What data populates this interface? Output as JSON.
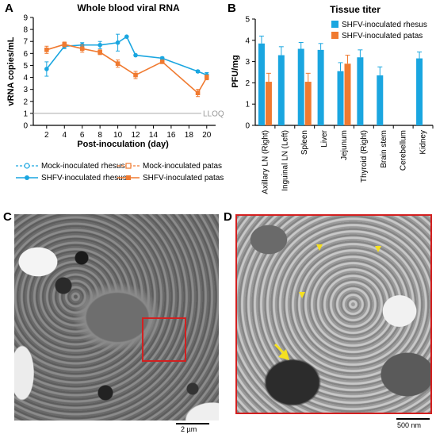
{
  "panel_labels": {
    "a": "A",
    "b": "B",
    "c": "C",
    "d": "D"
  },
  "chart_data": [
    {
      "type": "line",
      "title": "Whole blood viral RNA",
      "xlabel": "Post-inoculation (day)",
      "ylabel": "vRNA copies/mL",
      "xticks": [
        2,
        4,
        6,
        8,
        10,
        12,
        14,
        16,
        18,
        20
      ],
      "yticks": [
        0,
        1,
        2,
        3,
        4,
        5,
        6,
        7,
        8,
        9
      ],
      "ylim": [
        0,
        9
      ],
      "xlim": [
        0.5,
        21
      ],
      "lloq": 1,
      "lloq_label": "LLOQ",
      "legend": [
        "Mock-inoculated rhesus",
        "Mock-inoculated patas",
        "SHFV-inoculated rhesus",
        "SHFV-inoculated patas"
      ],
      "series": [
        {
          "name": "SHFV-inoculated rhesus",
          "color": "#1aa6e0",
          "x": [
            2,
            4,
            6,
            8,
            10,
            11,
            12,
            15,
            19,
            20
          ],
          "y": [
            4.7,
            6.6,
            6.7,
            6.7,
            6.9,
            7.4,
            5.85,
            5.6,
            4.5,
            4.2
          ],
          "err": [
            0.6,
            0.2,
            0.2,
            0.3,
            0.7,
            0,
            0,
            0.1,
            0.1,
            0.2
          ]
        },
        {
          "name": "SHFV-inoculated patas",
          "color": "#f07a30",
          "x": [
            2,
            4,
            6,
            8,
            10,
            12,
            15,
            19,
            20
          ],
          "y": [
            6.3,
            6.75,
            6.4,
            6.1,
            5.15,
            4.2,
            5.3,
            2.7,
            4.0
          ],
          "err": [
            0.3,
            0.2,
            0.3,
            0.2,
            0.3,
            0.3,
            0.1,
            0.3,
            0.2
          ]
        }
      ]
    },
    {
      "type": "bar",
      "title": "Tissue titer",
      "ylabel": "PFU/mg",
      "ylim": [
        0,
        5
      ],
      "yticks": [
        0,
        1,
        2,
        3,
        4,
        5
      ],
      "categories": [
        "Axillary LN (Right)",
        "Inguinal LN (Left)",
        "Spleen",
        "Liver",
        "Jejunum",
        "Thyroid (Right)",
        "Brain stem",
        "Cerebellum",
        "Kidney"
      ],
      "series": [
        {
          "name": "SHFV-inoculated rhesus",
          "color": "#1aa6e0",
          "values": [
            3.85,
            3.3,
            3.6,
            3.55,
            2.55,
            3.2,
            2.35,
            0,
            3.15
          ],
          "err": [
            0.35,
            0.4,
            0.3,
            0.3,
            0.4,
            0.35,
            0.4,
            0,
            0.3
          ]
        },
        {
          "name": "SHFV-inoculated patas",
          "color": "#f07a30",
          "values": [
            2.05,
            0,
            2.05,
            0,
            2.9,
            0,
            0,
            0,
            0
          ],
          "err": [
            0.4,
            0,
            0.4,
            0,
            0.4,
            0,
            0,
            0,
            0
          ]
        }
      ]
    }
  ],
  "micrographs": {
    "c_scalebar": "2 µm",
    "d_scalebar": "500 nm"
  }
}
